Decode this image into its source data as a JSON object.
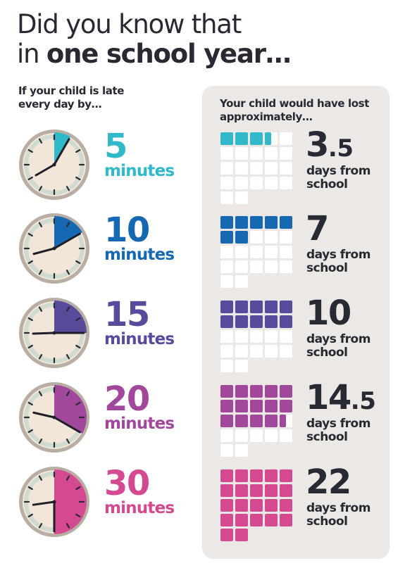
{
  "title": {
    "line1": "Did you know that",
    "line2_prefix": "in ",
    "line2_bold": "one school year…"
  },
  "left_heading": "If your child is late every day by…",
  "right_heading": "Your child would have lost approximately…",
  "rows": [
    {
      "minutes": "5",
      "minutes_label": "minutes",
      "days_main": "3",
      "days_fraction": ".5",
      "days_value": 3.5,
      "days_label": "days from school",
      "color": "#31b8c9",
      "hour_hand_angle_deg": 240,
      "clock_fraction_of_hour": 0.0833
    },
    {
      "minutes": "10",
      "minutes_label": "minutes",
      "days_main": "7",
      "days_fraction": "",
      "days_value": 7,
      "days_label": "days from school",
      "color": "#1768b3",
      "hour_hand_angle_deg": 255,
      "clock_fraction_of_hour": 0.1667
    },
    {
      "minutes": "15",
      "minutes_label": "minutes",
      "days_main": "10",
      "days_fraction": "",
      "days_value": 10,
      "days_label": "days from school",
      "color": "#5a4a9c",
      "hour_hand_angle_deg": 268,
      "clock_fraction_of_hour": 0.25
    },
    {
      "minutes": "20",
      "minutes_label": "minutes",
      "days_main": "14",
      "days_fraction": ".5",
      "days_value": 14.5,
      "days_label": "days from school",
      "color": "#a1479c",
      "hour_hand_angle_deg": 283,
      "clock_fraction_of_hour": 0.3333
    },
    {
      "minutes": "30",
      "minutes_label": "minutes",
      "days_main": "22",
      "days_fraction": "",
      "days_value": 22,
      "days_label": "days from school",
      "color": "#d4498f",
      "hour_hand_angle_deg": 262,
      "clock_fraction_of_hour": 0.5
    }
  ],
  "grid_total_squares": 22,
  "colors": {
    "text": "#272933",
    "panel": "#ece8e6",
    "clock_face": "#ecdecd",
    "clock_rim": "#b9aea3",
    "clock_inner_ring": "#cfdbd0",
    "empty_square": "#ffffff"
  }
}
